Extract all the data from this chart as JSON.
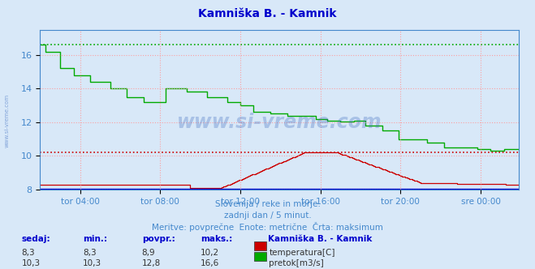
{
  "title": "Kamniška B. - Kamnik",
  "title_color": "#0000cc",
  "bg_color": "#d8e8f8",
  "plot_bg_color": "#d8e8f8",
  "grid_color": "#ff9999",
  "text_color": "#4488cc",
  "axis_color": "#4488cc",
  "watermark": "www.si-vreme.com",
  "subtitle1": "Slovenija / reke in morje.",
  "subtitle2": "zadnji dan / 5 minut.",
  "subtitle3": "Meritve: povprečne  Enote: metrične  Črta: maksimum",
  "legend_title": "Kamniška B. - Kamnik",
  "legend_items": [
    "temperatura[C]",
    "pretok[m3/s]"
  ],
  "legend_colors": [
    "#cc0000",
    "#00aa00"
  ],
  "table_headers": [
    "sedaj:",
    "min.:",
    "povpr.:",
    "maks.:"
  ],
  "table_row1": [
    "8,3",
    "8,3",
    "8,9",
    "10,2"
  ],
  "table_row2": [
    "10,3",
    "10,3",
    "12,8",
    "16,6"
  ],
  "ylim_min": 8.0,
  "ylim_max": 17.5,
  "yticks": [
    8,
    10,
    12,
    14,
    16
  ],
  "xtick_labels": [
    "tor 04:00",
    "tor 08:00",
    "tor 12:00",
    "tor 16:00",
    "tor 20:00",
    "sre 00:00"
  ],
  "temp_color": "#cc0000",
  "flow_color": "#00aa00",
  "height_color": "#0000cc",
  "max_temp": 10.2,
  "max_flow": 16.6
}
